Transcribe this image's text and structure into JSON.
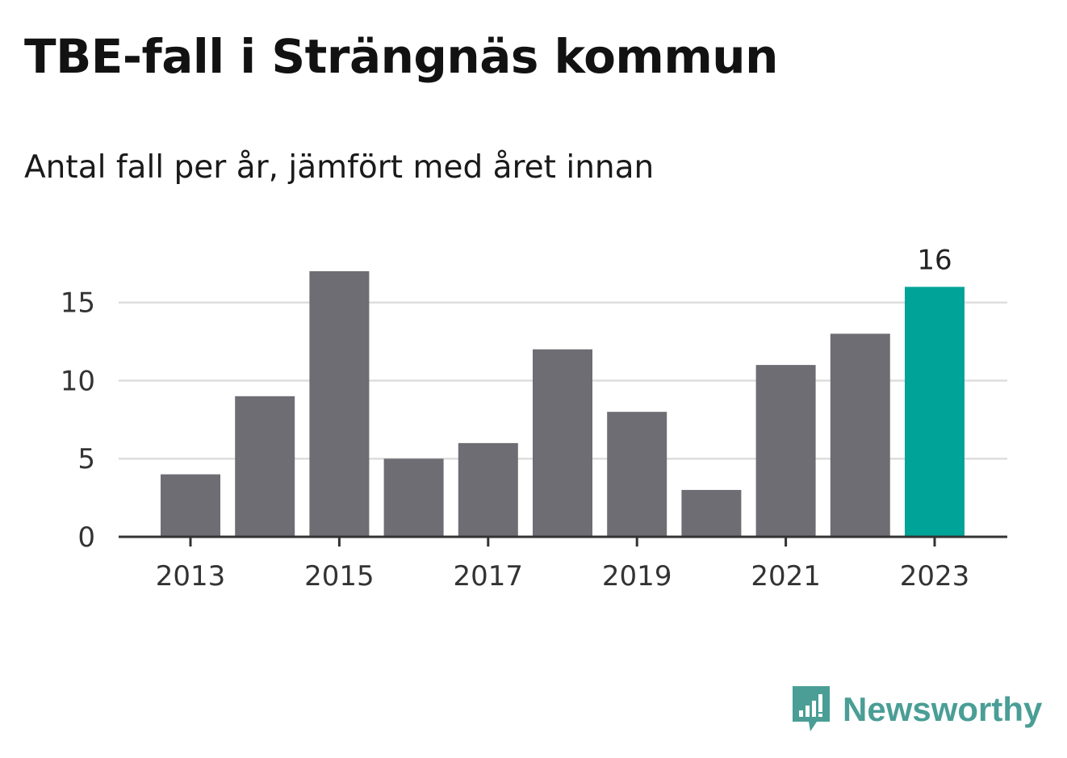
{
  "header": {
    "title": "TBE-fall i Strängnäs kommun",
    "subtitle": "Antal fall per år, jämfört med året innan"
  },
  "brand": {
    "name": "Newsworthy",
    "icon": "newsworthy-logo-icon",
    "color": "#4a9e96"
  },
  "chart_data": {
    "type": "bar",
    "categories": [
      "2013",
      "2014",
      "2015",
      "2016",
      "2017",
      "2018",
      "2019",
      "2020",
      "2021",
      "2022",
      "2023"
    ],
    "values": [
      4,
      9,
      17,
      5,
      6,
      12,
      8,
      3,
      11,
      13,
      16
    ],
    "x_tick_labels": [
      "2013",
      "2015",
      "2017",
      "2019",
      "2021",
      "2023"
    ],
    "y_ticks": [
      0,
      5,
      10,
      15
    ],
    "ylim": [
      0,
      17
    ],
    "grid": true,
    "highlight_index": 10,
    "data_labels": [
      {
        "index": 10,
        "text": "16"
      }
    ],
    "colors": {
      "bar": "#6e6d73",
      "highlight": "#00a398",
      "grid": "#dddddd",
      "axis": "#333333"
    },
    "xlabel": "",
    "ylabel": ""
  }
}
